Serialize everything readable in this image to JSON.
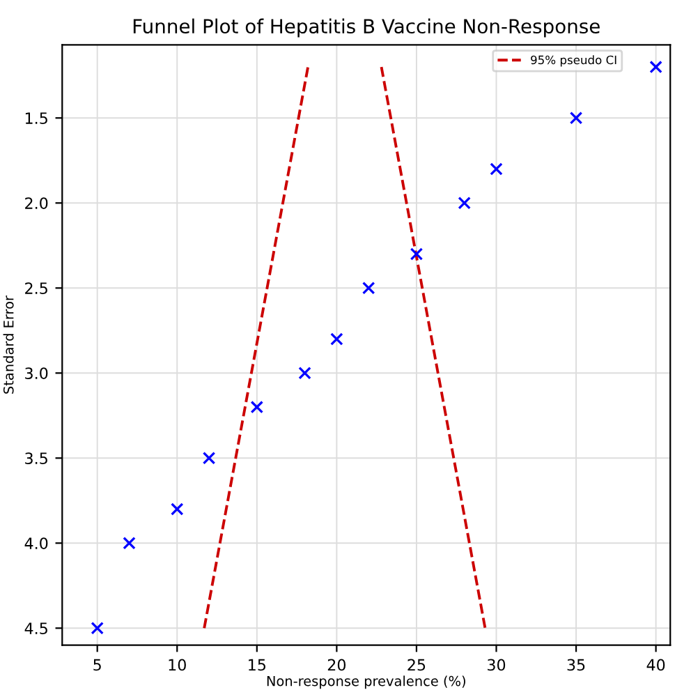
{
  "chart_data": {
    "type": "scatter",
    "title": "Funnel Plot of Hepatitis B Vaccine Non-Response",
    "xlabel": "Non-response prevalence (%)",
    "ylabel": "Standard Error",
    "series": [
      {
        "color": "#0000ff",
        "marker": "cross",
        "x": [
          5,
          7,
          10,
          12,
          15,
          18,
          20,
          22,
          25,
          28,
          30,
          35,
          40
        ],
        "values": [
          4.5,
          4.0,
          3.8,
          3.5,
          3.2,
          3.0,
          2.8,
          2.5,
          2.3,
          2.0,
          1.8,
          1.5,
          1.2
        ]
      },
      {
        "type": "line",
        "name": "95% pseudo CI",
        "color": "#cc0000",
        "line_style": "dashed",
        "marker": "none",
        "x": [
          11.7,
          18.2,
          20.5,
          22.8,
          29.3
        ],
        "values": [
          4.5,
          1.2,
          null,
          1.2,
          4.5
        ]
      }
    ],
    "xlim": [
      2.8,
      40.9
    ],
    "ylim": [
      4.6,
      1.07
    ],
    "xticks": [
      5,
      10,
      15,
      20,
      25,
      30,
      35,
      40
    ],
    "yticks": [
      {
        "value": 1.5,
        "label": "1.5"
      },
      {
        "value": 2,
        "label": "2.0"
      },
      {
        "value": 2.5,
        "label": "2.5"
      },
      {
        "value": 3,
        "label": "3.0"
      },
      {
        "value": 3.5,
        "label": "3.5"
      },
      {
        "value": 4,
        "label": "4.0"
      },
      {
        "value": 4.5,
        "label": "4.5"
      }
    ],
    "grid": true,
    "legend": "top right"
  }
}
